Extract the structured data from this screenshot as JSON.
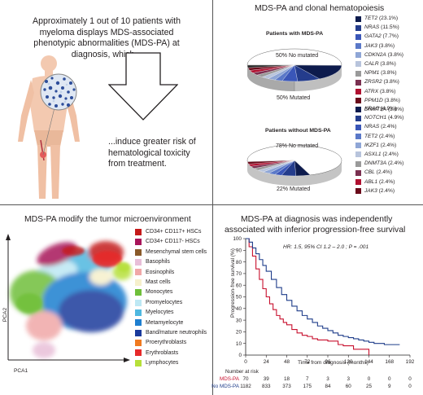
{
  "q1": {
    "top_text": "Approximately 1 out of 10 patients with myeloma displays MDS-associated phenotypic abnormalities (MDS-PA) at diagnosis, which...",
    "bottom_text": "...induce greater risk of hematological toxicity from treatment."
  },
  "q2": {
    "title": "MDS-PA and clonal hematopoiesis",
    "with_title": "Patients with MDS-PA",
    "with_not_mutated": "50% No mutated",
    "with_mutated": "50% Mutated",
    "with_genes": [
      {
        "gene": "TET2",
        "pct": "(23.1%)",
        "color": "#0d1b4d"
      },
      {
        "gene": "NRAS",
        "pct": "(11.5%)",
        "color": "#243c8c"
      },
      {
        "gene": "GATA2",
        "pct": "(7.7%)",
        "color": "#3a56b8"
      },
      {
        "gene": "JAK3",
        "pct": "(3.8%)",
        "color": "#5a78c8"
      },
      {
        "gene": "CDKN2A",
        "pct": "(3.8%)",
        "color": "#8fa6d6"
      },
      {
        "gene": "CALR",
        "pct": "(3.8%)",
        "color": "#b8c4dc"
      },
      {
        "gene": "NPM1",
        "pct": "(3.8%)",
        "color": "#9a9a9a"
      },
      {
        "gene": "ZRSR2",
        "pct": "(3.8%)",
        "color": "#7a3050"
      },
      {
        "gene": "ATRX",
        "pct": "(3.8%)",
        "color": "#b01030"
      },
      {
        "gene": "PPM1D",
        "pct": "(3.8%)",
        "color": "#6a0a1a"
      },
      {
        "gene": "DNMT3A",
        "pct": "(3.8%)",
        "color": "#2a2a2a"
      }
    ],
    "without_title": "Patients without MDS-PA",
    "without_not_mutated": "78% No mutated",
    "without_mutated": "22% Mutated",
    "without_genes": [
      {
        "gene": "KRAS",
        "pct": "(4.9%)",
        "color": "#0d1b4d"
      },
      {
        "gene": "NOTCH1",
        "pct": "(4.9%)",
        "color": "#243c8c"
      },
      {
        "gene": "NRAS",
        "pct": "(2.4%)",
        "color": "#3a56b8"
      },
      {
        "gene": "TET2",
        "pct": "(2.4%)",
        "color": "#5a78c8"
      },
      {
        "gene": "IKZF1",
        "pct": "(2.4%)",
        "color": "#8fa6d6"
      },
      {
        "gene": "ASXL1",
        "pct": "(2.4%)",
        "color": "#b8c4dc"
      },
      {
        "gene": "DNMT3A",
        "pct": "(2.4%)",
        "color": "#9a9a9a"
      },
      {
        "gene": "CBL",
        "pct": "(2.4%)",
        "color": "#7a3050"
      },
      {
        "gene": "ABL1",
        "pct": "(2.4%)",
        "color": "#b01030"
      },
      {
        "gene": "JAK3",
        "pct": "(2.4%)",
        "color": "#6a0a1a"
      }
    ]
  },
  "q3": {
    "title": "MDS-PA modify the tumor microenvironment",
    "axis_y": "PCA2",
    "axis_x": "PCA1",
    "populations": [
      {
        "label": "CD34+ CD117+ HSCs",
        "color": "#c41a1a"
      },
      {
        "label": "CD34+ CD117- HSCs",
        "color": "#a8155a"
      },
      {
        "label": "Mesenchymal stem cells",
        "color": "#8a5a2a"
      },
      {
        "label": "Basophils",
        "color": "#e8bfd8"
      },
      {
        "label": "Eosinophils",
        "color": "#f0a8a8"
      },
      {
        "label": "Mast cells",
        "color": "#f6f0cc"
      },
      {
        "label": "Monocytes",
        "color": "#6fbf3a"
      },
      {
        "label": "Promyelocytes",
        "color": "#bde8f4"
      },
      {
        "label": "Myelocytes",
        "color": "#4fb8e0"
      },
      {
        "label": "Metamyelocyte",
        "color": "#1f7fd0"
      },
      {
        "label": "Band/mature neutrophils",
        "color": "#1a3a9c"
      },
      {
        "label": "Proerythroblasts",
        "color": "#f07a20"
      },
      {
        "label": "Erythroblasts",
        "color": "#e62a2a"
      },
      {
        "label": "Lymphocytes",
        "color": "#b6e03a"
      }
    ]
  },
  "q4": {
    "title_line1": "MDS-PA at diagnosis was independently",
    "title_line2": "associated with inferior progression-free survival",
    "hr_text": "HR: 1.5, 95% CI 1.2 – 2.0 ; P = .001",
    "ylabel": "Progression-free survival (%)",
    "xlabel": "Time from diagnosis (months)",
    "number_at_risk": "Number at risk",
    "colors": {
      "mds": "#c8102e",
      "nomds": "#1f3d8a"
    },
    "chart_data": {
      "type": "line",
      "title": "MDS-PA at diagnosis was independently associated with inferior progression-free survival",
      "xlabel": "Time from diagnosis (months)",
      "ylabel": "Progression-free survival (%)",
      "xlim": [
        0,
        192
      ],
      "ylim": [
        0,
        100
      ],
      "x_ticks": [
        "0",
        "24",
        "48",
        "72",
        "96",
        "120",
        "144",
        "168",
        "192"
      ],
      "y_ticks": [
        "0",
        "10",
        "20",
        "30",
        "40",
        "50",
        "60",
        "70",
        "80",
        "90",
        "100"
      ],
      "series": [
        {
          "name": "MDS-PA",
          "x": [
            0,
            4,
            8,
            12,
            16,
            20,
            24,
            28,
            32,
            36,
            40,
            44,
            48,
            54,
            60,
            66,
            72,
            78,
            84,
            90,
            96,
            102,
            108,
            114,
            120,
            126,
            132,
            138,
            144
          ],
          "y": [
            100,
            93,
            85,
            74,
            65,
            57,
            50,
            44,
            39,
            34,
            31,
            28,
            26,
            22,
            19,
            17,
            16,
            14,
            13,
            13,
            12,
            12,
            9,
            8,
            8,
            5,
            5,
            5,
            0
          ]
        },
        {
          "name": "No MDS-PA",
          "x": [
            0,
            4,
            8,
            12,
            16,
            20,
            24,
            30,
            36,
            42,
            48,
            54,
            60,
            66,
            72,
            78,
            84,
            90,
            96,
            102,
            108,
            114,
            120,
            126,
            132,
            138,
            144,
            150,
            156,
            162,
            168,
            174,
            180
          ],
          "y": [
            100,
            97,
            92,
            87,
            82,
            77,
            72,
            65,
            58,
            52,
            47,
            42,
            38,
            34,
            31,
            28,
            25,
            23,
            21,
            19,
            17,
            16,
            15,
            14,
            13,
            12,
            11,
            10,
            10,
            9,
            9,
            9,
            9
          ]
        }
      ],
      "risk_table": {
        "times": [
          "0",
          "24",
          "48",
          "72",
          "96",
          "120",
          "144",
          "168",
          "192"
        ],
        "rows": [
          {
            "name": "MDS-PA",
            "values": [
              "70",
              "39",
              "18",
              "7",
              "3",
              "3",
              "0",
              "0",
              "0"
            ]
          },
          {
            "name": "No MDS-PA",
            "values": [
              "1182",
              "833",
              "373",
              "175",
              "84",
              "60",
              "25",
              "9",
              "0"
            ]
          }
        ]
      }
    }
  }
}
